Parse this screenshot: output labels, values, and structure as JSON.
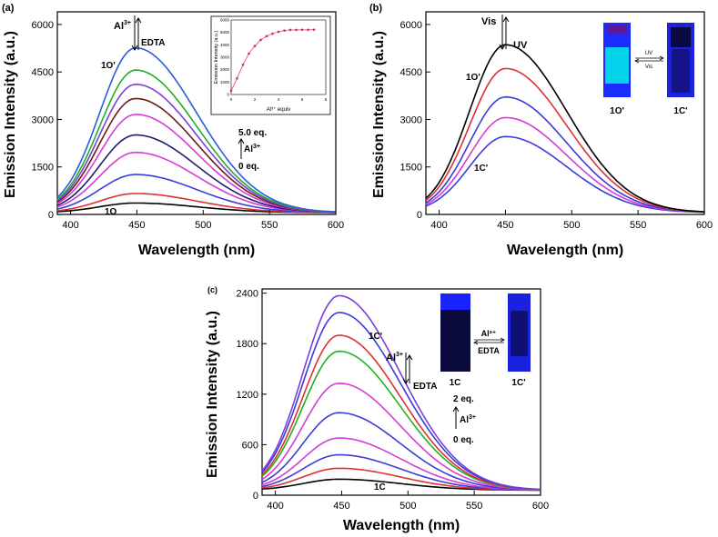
{
  "colors": {
    "black": "#000000",
    "red": "#e03030",
    "blue": "#3b3bd9",
    "magenta": "#d63bd6",
    "violet": "#7b3fd9",
    "green": "#22b022",
    "navy": "#1c1c6e",
    "brown": "#6b1a1a",
    "curve_blue": "#2b5bdf",
    "inset_line": "#ff5050",
    "inset_marker": "#b0308a",
    "photo_bg": "#0c0c58",
    "photo_bright": "#00f0e6"
  },
  "chart_data": [
    {
      "panel": "(a)",
      "type": "line",
      "xlabel": "Wavelength (nm)",
      "ylabel": "Emission Intensity (a.u.)",
      "xlim": [
        390,
        600
      ],
      "ylim": [
        0,
        6400
      ],
      "xticks": [
        "400",
        "450",
        "500",
        "550",
        "600"
      ],
      "yticks": [
        "0",
        "1500",
        "3000",
        "4500",
        "6000"
      ],
      "x_tick_values": [
        400,
        450,
        500,
        550,
        600
      ],
      "y_tick_values": [
        0,
        1500,
        3000,
        4500,
        6000
      ],
      "peak_x": 449,
      "series_peaks": [
        300,
        600,
        1200,
        1900,
        2450,
        3100,
        3600,
        4050,
        4500,
        5200
      ],
      "series_colors": [
        "black",
        "red",
        "blue",
        "magenta",
        "navy",
        "magenta",
        "brown",
        "violet",
        "green",
        "curve_blue"
      ],
      "annotations": {
        "ion": "Al",
        "ion_charge": "3+",
        "reverse": "EDTA",
        "top_label": "1O'",
        "bottom_label": "1O",
        "upper_eq": "5.0 eq.",
        "lower_eq": "0 eq."
      },
      "inset": {
        "xlabel": "Al³⁺ equiv",
        "ylabel": "Emission Intensity (a.u.)",
        "xlim": [
          0,
          8
        ],
        "ylim": [
          0,
          6000
        ],
        "xticks": [
          "0",
          "2",
          "4",
          "6",
          "8"
        ],
        "yticks": [
          "0",
          "1000",
          "2000",
          "3000",
          "4000",
          "5000",
          "6000"
        ],
        "x_tick_values": [
          0,
          2,
          4,
          6,
          8
        ],
        "y_tick_values": [
          0,
          1000,
          2000,
          3000,
          4000,
          5000,
          6000
        ],
        "x": [
          0,
          0.5,
          1,
          1.5,
          2,
          2.5,
          3,
          3.5,
          4,
          4.5,
          5,
          5.5,
          6,
          6.5,
          7
        ],
        "y": [
          300,
          1300,
          2400,
          3300,
          3900,
          4400,
          4700,
          4900,
          5050,
          5150,
          5200,
          5200,
          5210,
          5210,
          5220
        ]
      }
    },
    {
      "panel": "(b)",
      "type": "line",
      "xlabel": "Wavelength (nm)",
      "ylabel": "Emission Intensity (a.u.)",
      "xlim": [
        390,
        600
      ],
      "ylim": [
        0,
        6400
      ],
      "xticks": [
        "400",
        "450",
        "500",
        "550",
        "600"
      ],
      "yticks": [
        "0",
        "1500",
        "3000",
        "4500",
        "6000"
      ],
      "x_tick_values": [
        400,
        450,
        500,
        550,
        600
      ],
      "y_tick_values": [
        0,
        1500,
        3000,
        4500,
        6000
      ],
      "peak_x": 450,
      "series_peaks": [
        2400,
        3000,
        3650,
        4550,
        5300
      ],
      "series_colors": [
        "blue",
        "magenta",
        "blue",
        "red",
        "black"
      ],
      "annotations": {
        "vis": "Vis",
        "uv": "UV",
        "top_label": "1O'",
        "bottom_label": "1C'"
      },
      "photos": {
        "left_caption": "1O'",
        "right_caption": "1C'",
        "arrow_top": "UV",
        "arrow_bottom": "Vis"
      }
    },
    {
      "panel": "(c)",
      "type": "line",
      "xlabel": "Wavelength (nm)",
      "ylabel": "Emission Intensity (a.u.)",
      "xlim": [
        390,
        600
      ],
      "ylim": [
        0,
        2450
      ],
      "xticks": [
        "400",
        "450",
        "500",
        "550",
        "600"
      ],
      "yticks": [
        "0",
        "600",
        "1200",
        "1800",
        "2400"
      ],
      "x_tick_values": [
        400,
        450,
        500,
        550,
        600
      ],
      "y_tick_values": [
        0,
        600,
        1200,
        1800,
        2400
      ],
      "peak_x": 448,
      "series_peaks": [
        130,
        260,
        420,
        620,
        920,
        1270,
        1650,
        1840,
        2110,
        2310
      ],
      "series_colors": [
        "black",
        "red",
        "blue",
        "magenta",
        "blue",
        "magenta",
        "green",
        "red",
        "blue",
        "violet"
      ],
      "annotations": {
        "ion": "Al",
        "ion_charge": "3+",
        "reverse": "EDTA",
        "top_label": "1C'",
        "bottom_label": "1C",
        "upper_eq": "2 eq.",
        "lower_eq": "0 eq."
      },
      "photos": {
        "left_caption": "1C",
        "right_caption": "1C'",
        "arrow_top": "Al³⁺",
        "arrow_bottom": "EDTA"
      }
    }
  ]
}
